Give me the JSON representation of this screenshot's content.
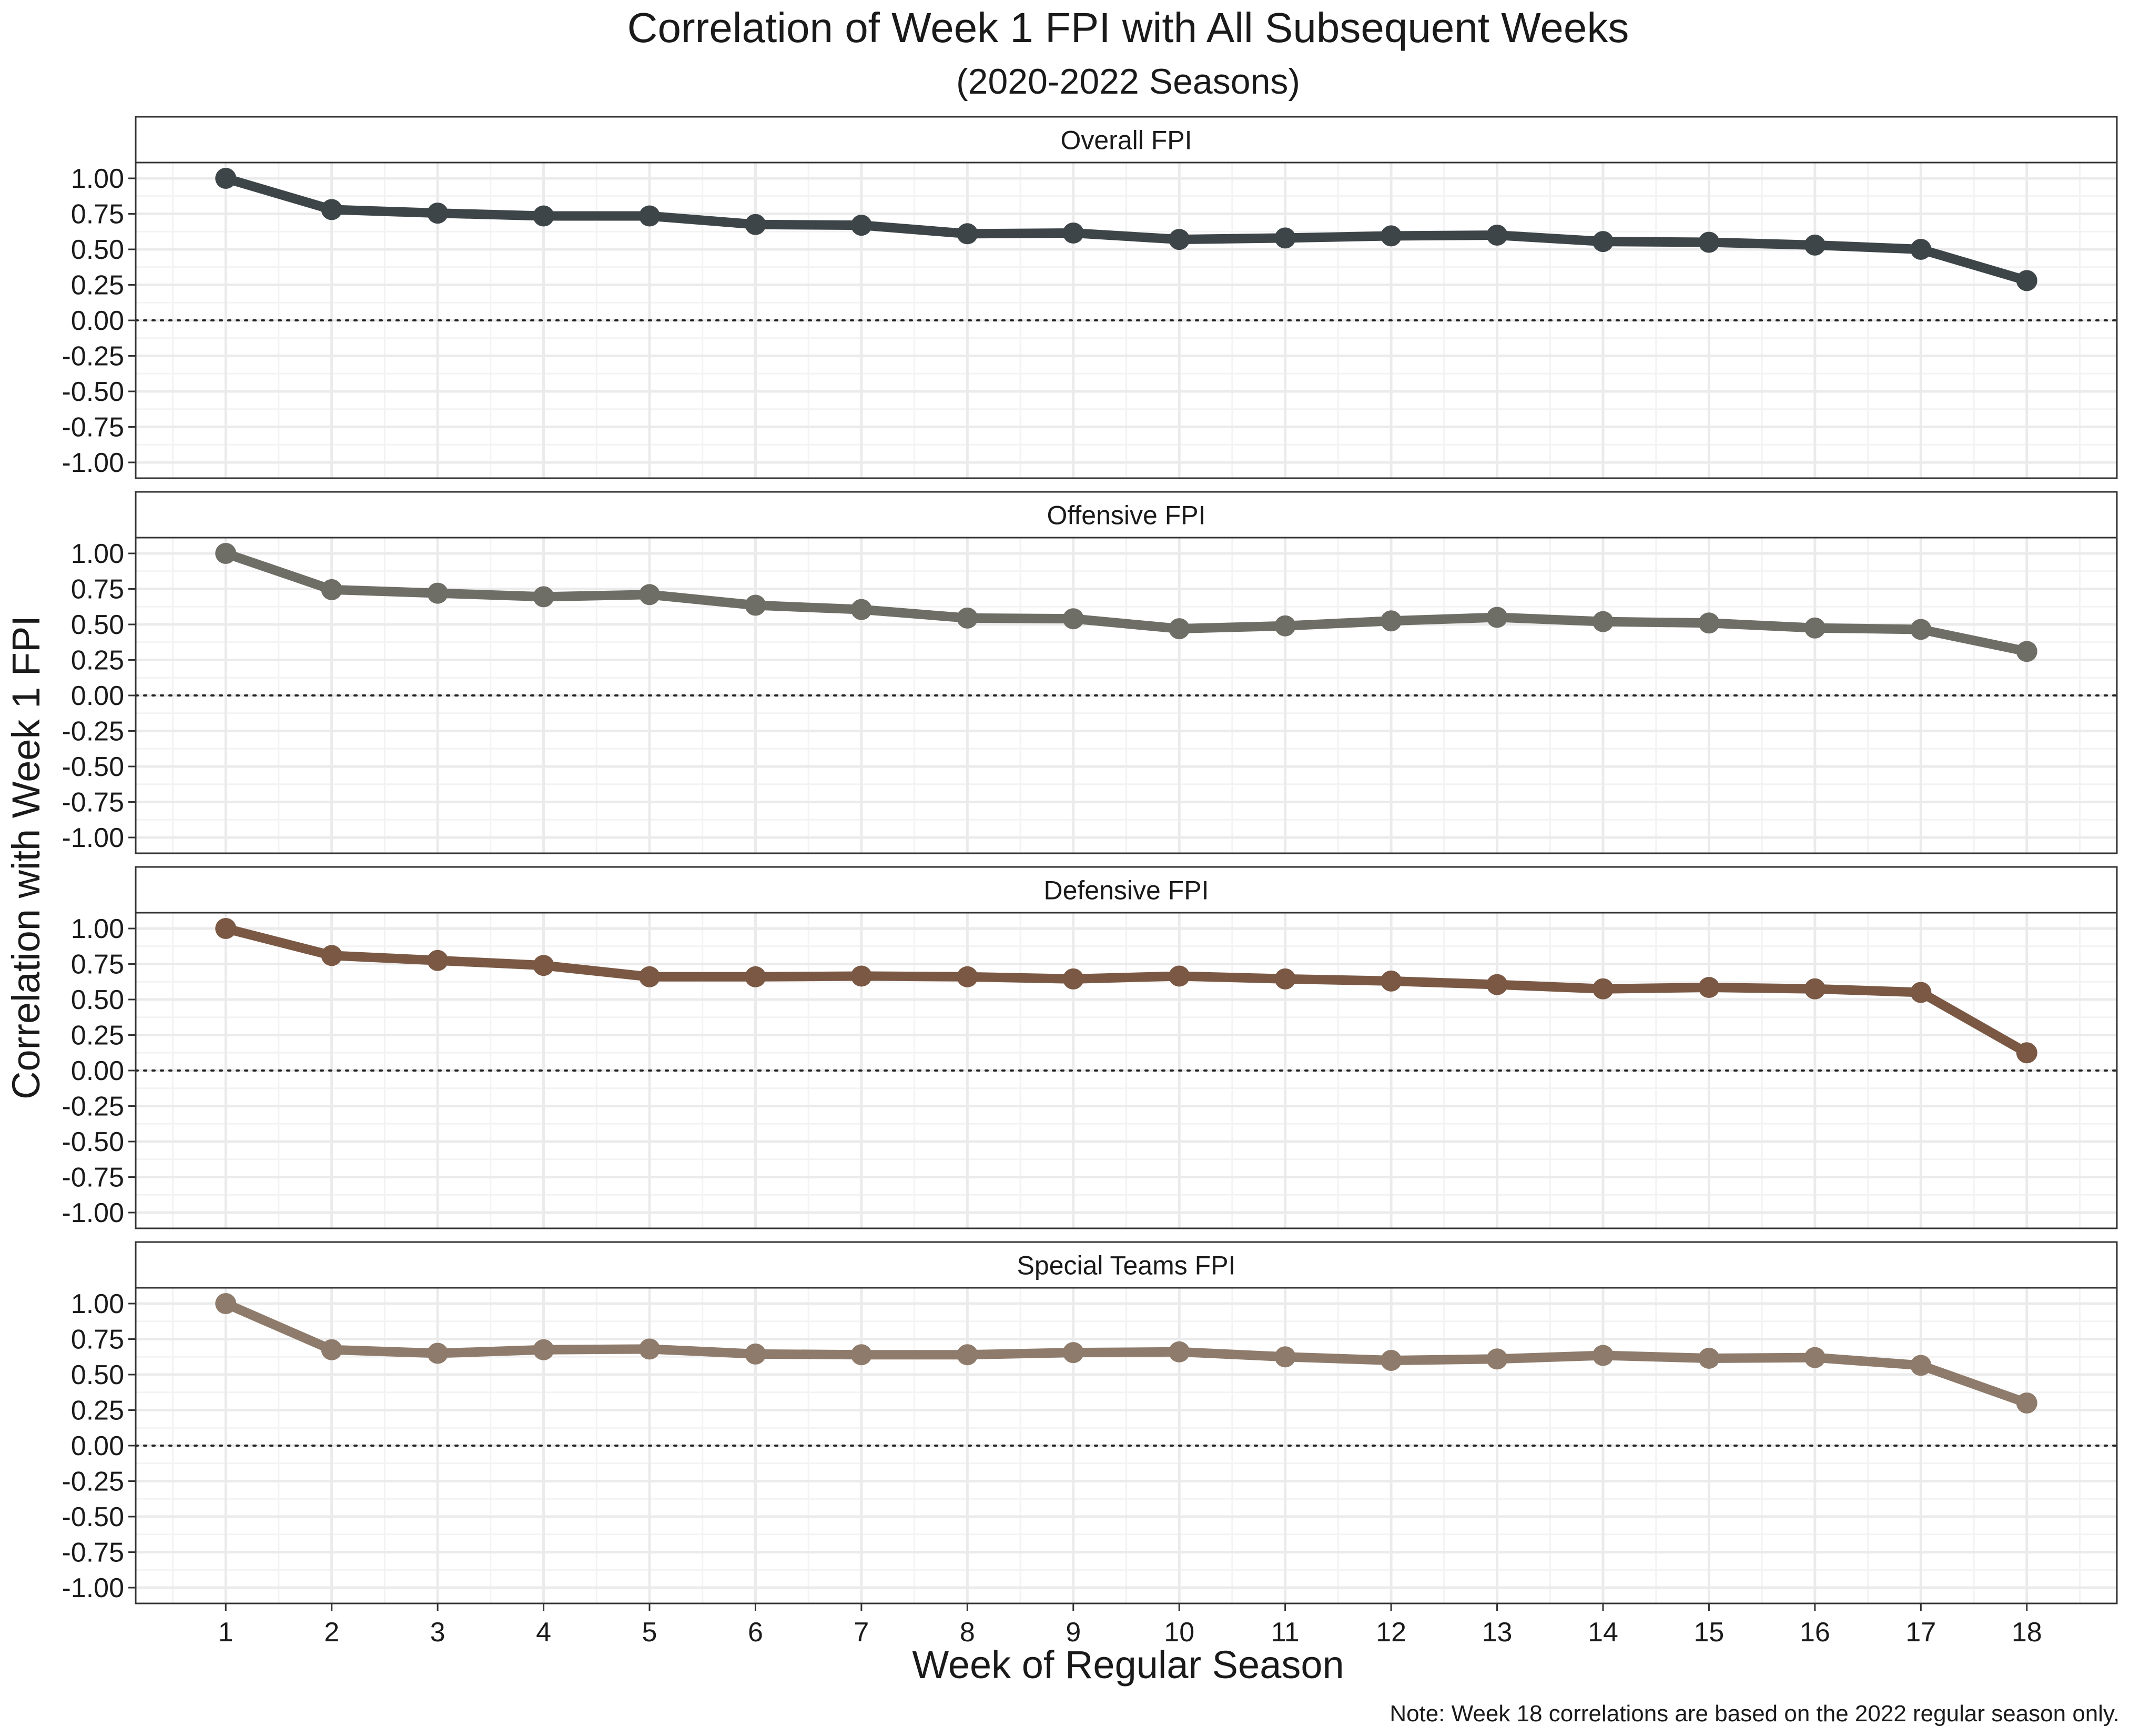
{
  "chart_data": {
    "type": "line",
    "title": "Correlation of Week 1 FPI with All Subsequent Weeks",
    "subtitle": "(2020-2022 Seasons)",
    "xlabel": "Week of Regular Season",
    "ylabel": "Correlation with Week 1 FPI",
    "note": "Note: Week 18 correlations are based on the 2022 regular season only.",
    "x": [
      1,
      2,
      3,
      4,
      5,
      6,
      7,
      8,
      9,
      10,
      11,
      12,
      13,
      14,
      15,
      16,
      17,
      18
    ],
    "x_tick_labels": [
      "1",
      "2",
      "3",
      "4",
      "5",
      "6",
      "7",
      "8",
      "9",
      "10",
      "11",
      "12",
      "13",
      "14",
      "15",
      "16",
      "17",
      "18"
    ],
    "ylim": [
      -1.0,
      1.0
    ],
    "y_tick_labels": [
      "1.00",
      "0.75",
      "0.50",
      "0.25",
      "0.00",
      "-0.25",
      "-0.50",
      "-0.75",
      "-1.00"
    ],
    "y_ticks": [
      1.0,
      0.75,
      0.5,
      0.25,
      0.0,
      -0.25,
      -0.5,
      -0.75,
      -1.0
    ],
    "reference_line": 0.0,
    "grid": true,
    "legend": "none",
    "panels": [
      {
        "label": "Overall FPI",
        "color": "#3d4548",
        "values": [
          1.0,
          0.78,
          0.755,
          0.735,
          0.735,
          0.675,
          0.67,
          0.61,
          0.615,
          0.57,
          0.58,
          0.595,
          0.6,
          0.555,
          0.55,
          0.53,
          0.5,
          0.28
        ]
      },
      {
        "label": "Offensive FPI",
        "color": "#6e6e66",
        "values": [
          1.0,
          0.745,
          0.72,
          0.695,
          0.71,
          0.635,
          0.605,
          0.545,
          0.54,
          0.47,
          0.49,
          0.525,
          0.55,
          0.52,
          0.51,
          0.475,
          0.465,
          0.31
        ]
      },
      {
        "label": "Defensive FPI",
        "color": "#7a5844",
        "values": [
          1.0,
          0.81,
          0.775,
          0.74,
          0.66,
          0.66,
          0.665,
          0.66,
          0.645,
          0.665,
          0.645,
          0.63,
          0.605,
          0.575,
          0.585,
          0.575,
          0.55,
          0.125
        ]
      },
      {
        "label": "Special Teams FPI",
        "color": "#8e7b6b",
        "values": [
          1.0,
          0.675,
          0.65,
          0.675,
          0.68,
          0.645,
          0.64,
          0.64,
          0.655,
          0.66,
          0.625,
          0.6,
          0.61,
          0.635,
          0.615,
          0.62,
          0.565,
          0.3
        ]
      }
    ]
  }
}
